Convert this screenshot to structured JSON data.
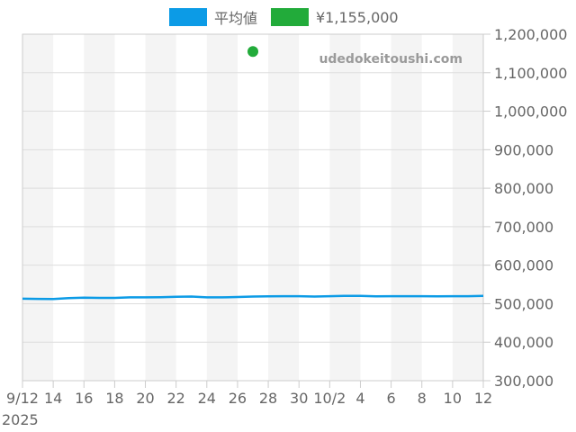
{
  "legend": {
    "items": [
      {
        "label": "平均値",
        "color": "#0c9be6"
      },
      {
        "label": "¥1,155,000",
        "color": "#22ab3a"
      }
    ]
  },
  "watermark": "udedokeitoushi.com",
  "x_axis": {
    "tick_labels": [
      "9/12",
      "14",
      "16",
      "18",
      "20",
      "22",
      "24",
      "26",
      "28",
      "30",
      "10/2",
      "4",
      "6",
      "8",
      "10",
      "12"
    ],
    "year_label": "2025"
  },
  "y_axis": {
    "tick_labels": [
      "1,200,000",
      "1,100,000",
      "1,000,000",
      "900,000",
      "800,000",
      "700,000",
      "600,000",
      "500,000",
      "400,000",
      "300,000"
    ]
  },
  "colors": {
    "average_line": "#0c9be6",
    "point": "#22ab3a",
    "stripe": "#f4f4f4",
    "grid": "#dddddd",
    "border": "#cccccc"
  },
  "chart_data": {
    "type": "line",
    "title": "",
    "xlabel": "",
    "ylabel": "",
    "ylim": [
      300000,
      1200000
    ],
    "xrange": [
      "2025-09-12",
      "2025-10-12"
    ],
    "grid": true,
    "legend_position": "top",
    "y_axis_position": "right",
    "categories": [
      "9/12",
      "9/13",
      "9/14",
      "9/15",
      "9/16",
      "9/17",
      "9/18",
      "9/19",
      "9/20",
      "9/21",
      "9/22",
      "9/23",
      "9/24",
      "9/25",
      "9/26",
      "9/27",
      "9/28",
      "9/29",
      "9/30",
      "10/1",
      "10/2",
      "10/3",
      "10/4",
      "10/5",
      "10/6",
      "10/7",
      "10/8",
      "10/9",
      "10/10",
      "10/11",
      "10/12"
    ],
    "series": [
      {
        "name": "平均値",
        "type": "line",
        "color": "#0c9be6",
        "values": [
          513000,
          512500,
          512000,
          514500,
          515500,
          515000,
          515000,
          516500,
          516500,
          517000,
          518000,
          518500,
          516500,
          516500,
          517500,
          518500,
          519000,
          519500,
          519500,
          518500,
          519500,
          520500,
          520500,
          519000,
          519500,
          519500,
          519500,
          519000,
          519500,
          519500,
          520500
        ]
      },
      {
        "name": "¥1,155,000",
        "type": "scatter",
        "color": "#22ab3a",
        "points": [
          {
            "x": "9/27",
            "y": 1155000
          }
        ]
      }
    ],
    "tick_labels_x": [
      "9/12",
      "14",
      "16",
      "18",
      "20",
      "22",
      "24",
      "26",
      "28",
      "30",
      "10/2",
      "4",
      "6",
      "8",
      "10",
      "12"
    ],
    "tick_labels_y": [
      "300,000",
      "400,000",
      "500,000",
      "600,000",
      "700,000",
      "800,000",
      "900,000",
      "1,000,000",
      "1,100,000",
      "1,200,000"
    ],
    "annotations": [
      "udedokeitoushi.com",
      "2025"
    ]
  }
}
